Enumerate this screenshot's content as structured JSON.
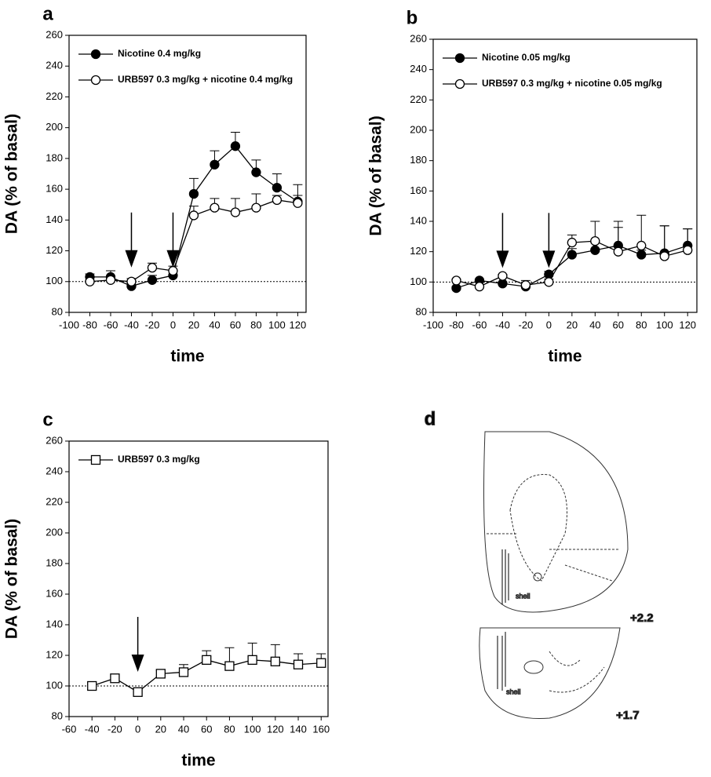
{
  "chart_data": [
    {
      "type": "line",
      "panel_label": "a",
      "x_label": "time",
      "y_label": "DA (% of basal)",
      "x": [
        -80,
        -60,
        -40,
        -20,
        0,
        20,
        40,
        60,
        80,
        100,
        120
      ],
      "series": [
        {
          "name": "Nicotine 0.4 mg/kg",
          "color": "#000000",
          "marker": "circle",
          "marker_fill": "#000000",
          "values": [
            103,
            103,
            97,
            101,
            104,
            157,
            176,
            188,
            171,
            161,
            152
          ],
          "errors": [
            2,
            4,
            2,
            3,
            3,
            10,
            9,
            9,
            8,
            9,
            11
          ]
        },
        {
          "name": "URB597 0.3 mg/kg + nicotine 0.4 mg/kg",
          "color": "#000000",
          "marker": "circle",
          "marker_fill": "#ffffff",
          "values": [
            100,
            101,
            100,
            109,
            107,
            143,
            148,
            145,
            148,
            153,
            151
          ],
          "errors": [
            1,
            2,
            2,
            3,
            3,
            6,
            6,
            9,
            9,
            3,
            5
          ]
        }
      ],
      "arrows": [
        -40,
        0
      ],
      "reference_line": 100,
      "xlim": [
        -100,
        128
      ],
      "xticks": [
        -100,
        -80,
        -60,
        -40,
        -20,
        0,
        20,
        40,
        60,
        80,
        100,
        120
      ],
      "ylim": [
        80,
        260
      ],
      "yticks": [
        80,
        100,
        120,
        140,
        160,
        180,
        200,
        220,
        240,
        260
      ],
      "legend": "upper left"
    },
    {
      "type": "line",
      "panel_label": "b",
      "x_label": "time",
      "y_label": "DA (% of basal)",
      "x": [
        -80,
        -60,
        -40,
        -20,
        0,
        20,
        40,
        60,
        80,
        100,
        120
      ],
      "series": [
        {
          "name": "Nicotine 0.05 mg/kg",
          "color": "#000000",
          "marker": "circle",
          "marker_fill": "#000000",
          "values": [
            96,
            101,
            99,
            97,
            105,
            118,
            121,
            124,
            118,
            119,
            124
          ],
          "errors": [
            1,
            1,
            1,
            2,
            2,
            4,
            5,
            16,
            3,
            18,
            11
          ]
        },
        {
          "name": "URB597 0.3 mg/kg + nicotine 0.05 mg/kg",
          "color": "#000000",
          "marker": "circle",
          "marker_fill": "#ffffff",
          "values": [
            101,
            97,
            104,
            98,
            100,
            126,
            127,
            120,
            124,
            117,
            121
          ],
          "errors": [
            1,
            1,
            1,
            3,
            2,
            5,
            13,
            16,
            20,
            20,
            14
          ]
        }
      ],
      "arrows": [
        -40,
        0
      ],
      "reference_line": 100,
      "xlim": [
        -100,
        128
      ],
      "xticks": [
        -100,
        -80,
        -60,
        -40,
        -20,
        0,
        20,
        40,
        60,
        80,
        100,
        120
      ],
      "ylim": [
        80,
        260
      ],
      "yticks": [
        80,
        100,
        120,
        140,
        160,
        180,
        200,
        220,
        240,
        260
      ],
      "legend": "upper left"
    },
    {
      "type": "line",
      "panel_label": "c",
      "x_label": "time",
      "y_label": "DA (% of basal)",
      "x": [
        -40,
        -20,
        0,
        20,
        40,
        60,
        80,
        100,
        120,
        140,
        160
      ],
      "series": [
        {
          "name": "URB597 0.3 mg/kg",
          "color": "#000000",
          "marker": "square",
          "marker_fill": "#ffffff",
          "values": [
            100,
            105,
            96,
            108,
            109,
            117,
            113,
            117,
            116,
            114,
            115
          ],
          "errors": [
            1,
            1,
            2,
            2,
            5,
            6,
            12,
            11,
            11,
            7,
            6
          ]
        }
      ],
      "arrows": [
        0
      ],
      "reference_line": 100,
      "xlim": [
        -60,
        166
      ],
      "xticks": [
        -60,
        -40,
        -20,
        0,
        20,
        40,
        60,
        80,
        100,
        120,
        140,
        160
      ],
      "ylim": [
        80,
        260
      ],
      "yticks": [
        80,
        100,
        120,
        140,
        160,
        180,
        200,
        220,
        240,
        260
      ],
      "legend": "upper left"
    }
  ],
  "diagram": {
    "label": "d",
    "sections": [
      {
        "level": "+2.2",
        "region": "shell"
      },
      {
        "level": "+1.7",
        "region": "shell"
      }
    ]
  }
}
